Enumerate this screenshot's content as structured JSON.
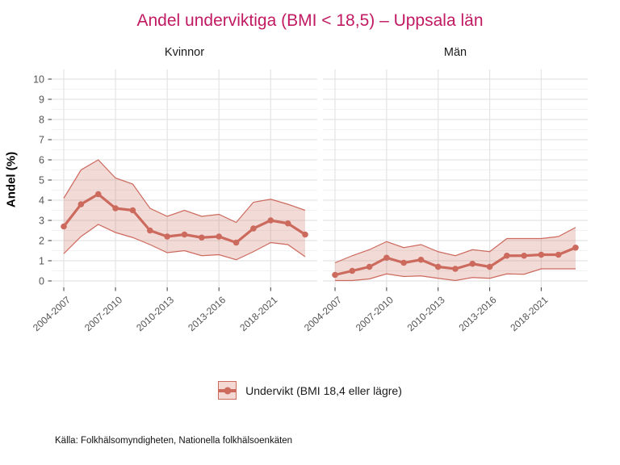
{
  "title": "Andel underviktiga (BMI < 18,5) – Uppsala län",
  "source": "Källa: Folkhälsomyndigheten, Nationella folkhälsoenkäten",
  "legend": {
    "label": "Undervikt (BMI 18,4 eller lägre)"
  },
  "y_axis": {
    "label": "Andel (%)",
    "ticks": [
      0,
      1,
      2,
      3,
      4,
      5,
      6,
      7,
      8,
      9,
      10
    ],
    "range": [
      0,
      10
    ]
  },
  "x_axis": {
    "tick_labels": [
      "2004-2007",
      "2007-2010",
      "2010-2013",
      "2013-2016",
      "2018-2021"
    ],
    "tick_indices": [
      0,
      3,
      6,
      9,
      12
    ],
    "n_points": 15
  },
  "colors": {
    "title": "#c11a62",
    "line": "#cd6a5e",
    "band_fill": "rgba(205,106,94,0.25)",
    "band_fill_solid": "#f3d8d3",
    "grid_major": "#e4e4e4",
    "grid_minor": "#f2f2f2",
    "axis_text": "#555555",
    "tick_mark": "#4a4a4a",
    "text": "#1a1a1a"
  },
  "chart_data": [
    {
      "type": "line",
      "facet": "Kvinnor",
      "series": "Undervikt (BMI 18,4 eller lägre)",
      "ylabel": "Andel (%)",
      "ylim": [
        0,
        10
      ],
      "grid": true,
      "legend_position": "bottom",
      "x_tick_labels": [
        "2004-2007",
        "2007-2010",
        "2010-2013",
        "2013-2016",
        "2018-2021"
      ],
      "values": [
        2.7,
        3.8,
        4.3,
        3.6,
        3.5,
        2.5,
        2.2,
        2.3,
        2.15,
        2.2,
        1.9,
        2.6,
        3.0,
        2.85,
        2.3
      ],
      "ci_upper": [
        4.1,
        5.5,
        6.0,
        5.1,
        4.8,
        3.6,
        3.2,
        3.5,
        3.2,
        3.3,
        2.9,
        3.9,
        4.05,
        3.8,
        3.5
      ],
      "ci_lower": [
        1.35,
        2.2,
        2.8,
        2.4,
        2.15,
        1.8,
        1.4,
        1.5,
        1.25,
        1.3,
        1.05,
        1.45,
        1.9,
        1.8,
        1.2
      ]
    },
    {
      "type": "line",
      "facet": "Män",
      "series": "Undervikt (BMI 18,4 eller lägre)",
      "ylabel": "Andel (%)",
      "ylim": [
        0,
        10
      ],
      "grid": true,
      "legend_position": "bottom",
      "x_tick_labels": [
        "2004-2007",
        "2007-2010",
        "2010-2013",
        "2013-2016",
        "2018-2021"
      ],
      "values": [
        0.3,
        0.5,
        0.7,
        1.15,
        0.9,
        1.05,
        0.7,
        0.6,
        0.85,
        0.7,
        1.25,
        1.25,
        1.3,
        1.3,
        1.65
      ],
      "ci_upper": [
        0.9,
        1.25,
        1.55,
        1.95,
        1.65,
        1.8,
        1.45,
        1.25,
        1.55,
        1.45,
        2.1,
        2.1,
        2.1,
        2.2,
        2.65
      ],
      "ci_lower": [
        0.02,
        0.02,
        0.1,
        0.35,
        0.22,
        0.25,
        0.13,
        0.02,
        0.17,
        0.13,
        0.35,
        0.33,
        0.6,
        0.6,
        0.6
      ]
    }
  ]
}
